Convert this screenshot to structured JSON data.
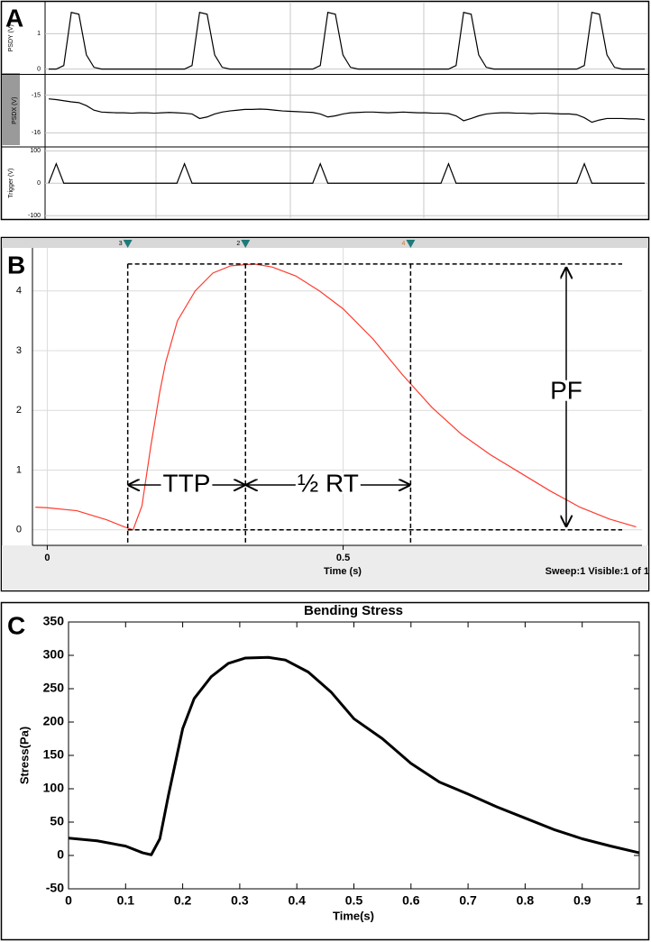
{
  "chart_data": [
    {
      "type": "line",
      "label": "A",
      "grid": true,
      "traces": [
        {
          "ylabel": "PSDY (V)",
          "ylim": [
            -0.15,
            1.9
          ],
          "yticks": [
            0,
            1
          ],
          "color": "#000000",
          "values": [
            0,
            0,
            0.1,
            1.6,
            1.55,
            0.4,
            0.05,
            0,
            0,
            0,
            0,
            0,
            0,
            0,
            0,
            0,
            0,
            0,
            0,
            0.1,
            1.6,
            1.55,
            0.4,
            0.05,
            0,
            0,
            0,
            0,
            0,
            0,
            0,
            0,
            0,
            0,
            0,
            0,
            0.1,
            1.6,
            1.55,
            0.4,
            0.05,
            0,
            0,
            0,
            0,
            0,
            0,
            0,
            0,
            0,
            0,
            0,
            0,
            0,
            0.1,
            1.6,
            1.55,
            0.4,
            0.05,
            0,
            0,
            0,
            0,
            0,
            0,
            0,
            0,
            0,
            0,
            0,
            0,
            0.1,
            1.6,
            1.55,
            0.4,
            0.05,
            0,
            0,
            0,
            0
          ]
        },
        {
          "ylabel": "PSDX (V)",
          "ylim": [
            -16.375,
            -14.45
          ],
          "yticks": [
            -16,
            -15
          ],
          "color": "#000000",
          "values": [
            -15.1,
            -15.12,
            -15.15,
            -15.18,
            -15.2,
            -15.28,
            -15.4,
            -15.45,
            -15.46,
            -15.47,
            -15.47,
            -15.48,
            -15.47,
            -15.47,
            -15.48,
            -15.47,
            -15.46,
            -15.47,
            -15.48,
            -15.5,
            -15.62,
            -15.58,
            -15.5,
            -15.45,
            -15.42,
            -15.4,
            -15.38,
            -15.38,
            -15.37,
            -15.38,
            -15.4,
            -15.42,
            -15.43,
            -15.44,
            -15.45,
            -15.46,
            -15.5,
            -15.58,
            -15.55,
            -15.5,
            -15.47,
            -15.46,
            -15.45,
            -15.45,
            -15.46,
            -15.47,
            -15.46,
            -15.45,
            -15.46,
            -15.47,
            -15.47,
            -15.48,
            -15.48,
            -15.49,
            -15.55,
            -15.68,
            -15.62,
            -15.55,
            -15.5,
            -15.48,
            -15.47,
            -15.47,
            -15.48,
            -15.48,
            -15.49,
            -15.48,
            -15.48,
            -15.49,
            -15.5,
            -15.5,
            -15.52,
            -15.6,
            -15.72,
            -15.66,
            -15.62,
            -15.62,
            -15.62,
            -15.63,
            -15.63,
            -15.65
          ]
        },
        {
          "ylabel": "Trigger (V)",
          "ylim": [
            -112,
            112
          ],
          "yticks": [
            -100,
            0,
            100
          ],
          "color": "#000000",
          "values": [
            0,
            60,
            0,
            0,
            0,
            0,
            0,
            0,
            0,
            0,
            0,
            0,
            0,
            0,
            0,
            0,
            0,
            0,
            60,
            0,
            0,
            0,
            0,
            0,
            0,
            0,
            0,
            0,
            0,
            0,
            0,
            0,
            0,
            0,
            0,
            0,
            60,
            0,
            0,
            0,
            0,
            0,
            0,
            0,
            0,
            0,
            0,
            0,
            0,
            0,
            0,
            0,
            0,
            60,
            0,
            0,
            0,
            0,
            0,
            0,
            0,
            0,
            0,
            0,
            0,
            0,
            0,
            0,
            0,
            0,
            0,
            60,
            0,
            0,
            0,
            0,
            0,
            0,
            0,
            0
          ]
        }
      ]
    },
    {
      "type": "line",
      "label": "B",
      "color": "#ff3b2f",
      "grid": true,
      "x": [
        -0.02,
        0,
        0.05,
        0.1,
        0.13,
        0.145,
        0.16,
        0.175,
        0.19,
        0.2,
        0.22,
        0.25,
        0.28,
        0.31,
        0.35,
        0.38,
        0.42,
        0.46,
        0.5,
        0.55,
        0.6,
        0.65,
        0.7,
        0.75,
        0.8,
        0.85,
        0.9,
        0.95,
        0.995
      ],
      "values": [
        0.38,
        0.37,
        0.32,
        0.17,
        0.05,
        0,
        0.4,
        1.4,
        2.3,
        2.8,
        3.5,
        4,
        4.3,
        4.42,
        4.45,
        4.4,
        4.25,
        4,
        3.7,
        3.2,
        2.6,
        2.05,
        1.6,
        1.25,
        0.95,
        0.65,
        0.38,
        0.18,
        0.05
      ],
      "xlim": [
        -0.025,
        1.005
      ],
      "ylim": [
        -0.26,
        4.72
      ],
      "xticks": [
        0,
        0.5
      ],
      "yticks": [
        0,
        1,
        2,
        3,
        4
      ],
      "xlabel": "Time (s)",
      "status": "Sweep:1 Visible:1 of 1",
      "cursors": [
        {
          "label": "3",
          "x": 0.136
        },
        {
          "label": "2",
          "x": 0.335
        },
        {
          "label": "4",
          "x": 0.614
        }
      ],
      "annotations": [
        "TTP",
        "½ RT",
        "PF"
      ]
    },
    {
      "type": "line",
      "label": "C",
      "title": "Bending Stress",
      "color": "#000000",
      "x": [
        0,
        0.05,
        0.1,
        0.13,
        0.145,
        0.16,
        0.175,
        0.19,
        0.2,
        0.22,
        0.25,
        0.28,
        0.31,
        0.35,
        0.38,
        0.42,
        0.46,
        0.5,
        0.55,
        0.6,
        0.65,
        0.7,
        0.75,
        0.8,
        0.85,
        0.9,
        0.95,
        1
      ],
      "values": [
        26,
        22,
        14,
        4,
        1,
        25,
        90,
        150,
        190,
        235,
        268,
        288,
        296,
        297,
        293,
        275,
        245,
        205,
        175,
        138,
        110,
        92,
        73,
        56,
        39,
        25,
        14,
        4
      ],
      "xlim": [
        0,
        1
      ],
      "ylim": [
        -50,
        350
      ],
      "xticks": [
        0,
        0.1,
        0.2,
        0.3,
        0.4,
        0.5,
        0.6,
        0.7,
        0.8,
        0.9,
        1
      ],
      "yticks": [
        -50,
        0,
        50,
        100,
        150,
        200,
        250,
        300,
        350
      ],
      "xlabel": "Time(s)",
      "ylabel": "Stress(Pa)"
    }
  ]
}
